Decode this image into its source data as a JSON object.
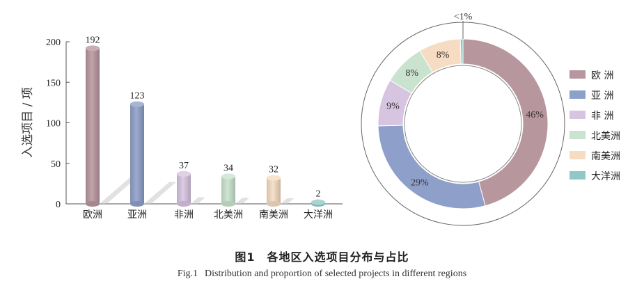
{
  "chart_data": [
    {
      "type": "bar",
      "ylabel": "入选项目 / 项",
      "categories": [
        "欧洲",
        "亚洲",
        "非洲",
        "北美洲",
        "南美洲",
        "大洋洲"
      ],
      "values": [
        192,
        123,
        37,
        34,
        32,
        2
      ],
      "data_labels": [
        "192",
        "123",
        "37",
        "34",
        "32",
        "2"
      ],
      "ylim": [
        0,
        200
      ],
      "yticks": [
        0,
        50,
        100,
        150,
        200
      ],
      "ytick_labels": [
        "0",
        "50",
        "100",
        "150",
        "200"
      ],
      "colors": [
        "#b8969e",
        "#8ea0c9",
        "#d7c4e0",
        "#c9e3cf",
        "#f5dcc2",
        "#8fc9c6"
      ],
      "grid": false
    },
    {
      "type": "pie",
      "style": "donut",
      "categories": [
        "欧 洲",
        "亚 洲",
        "非 洲",
        "北美洲",
        "南美洲",
        "大洋洲"
      ],
      "values": [
        46,
        29,
        9,
        8,
        8,
        0.5
      ],
      "slice_labels": [
        "46%",
        "29%",
        "9%",
        "8%",
        "8%",
        "<1%"
      ],
      "colors": [
        "#b8969e",
        "#8ea0c9",
        "#d7c4e0",
        "#c9e3cf",
        "#f5dcc2",
        "#8fc9c6"
      ],
      "legend_position": "right"
    }
  ],
  "caption": {
    "chinese": "图1　各地区入选项目分布与占比",
    "fig_no": "Fig.1",
    "english": "Distribution and proportion of selected projects in different regions"
  }
}
